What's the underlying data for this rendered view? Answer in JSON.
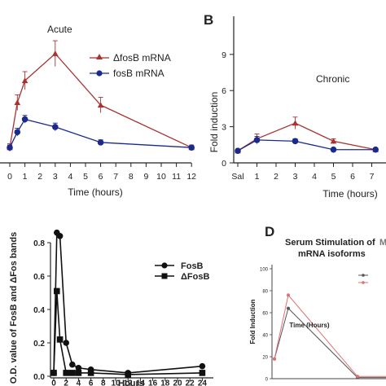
{
  "colors": {
    "red": "#a83232",
    "navy": "#1a2a8c",
    "black": "#111111",
    "pinkred": "#e06f6f",
    "gray": "#555555"
  },
  "panel_A": {
    "title": "Acute",
    "legend": [
      "ΔfosB mRNA",
      "fosB mRNA"
    ]
  },
  "panel_B": {
    "letter": "B",
    "title": "Chronic"
  },
  "panel_C": {
    "legend": [
      "FosB",
      "ΔFosB"
    ]
  },
  "panel_D": {
    "letter": "D",
    "title_line1": "Serum Stimulation of",
    "title_line2": "mRNA isoforms",
    "title_cut": "M"
  },
  "chart_data": [
    {
      "panel": "A",
      "type": "line",
      "title": "Acute",
      "xlabel": "Time (hours)",
      "ylabel": "",
      "x_ticks": [
        "0",
        "1",
        "2",
        "3",
        "4",
        "5",
        "6",
        "7",
        "8",
        "9",
        "10",
        "11",
        "12"
      ],
      "xlim": [
        0,
        12
      ],
      "ylim": [
        0,
        10
      ],
      "series": [
        {
          "name": "ΔfosB mRNA",
          "color": "#a83232",
          "marker": "triangle",
          "x": [
            0,
            0.5,
            1,
            3,
            6,
            12
          ],
          "y": [
            1,
            4.5,
            6.2,
            8.3,
            4.3,
            1
          ],
          "err": [
            0.3,
            0.6,
            0.7,
            1.0,
            0.6,
            0.2
          ]
        },
        {
          "name": "fosB mRNA",
          "color": "#1a2a8c",
          "marker": "circle",
          "x": [
            0,
            0.5,
            1,
            3,
            6,
            12
          ],
          "y": [
            1,
            2.2,
            3.2,
            2.6,
            1.4,
            1
          ],
          "err": [
            0.2,
            0.3,
            0.3,
            0.3,
            0.2,
            0.1
          ]
        }
      ]
    },
    {
      "panel": "B",
      "type": "line",
      "title": "Chronic",
      "xlabel": "Time (hours)",
      "ylabel": "Fold induction",
      "x_ticks": [
        "Sal",
        "1",
        "2",
        "3",
        "4",
        "5",
        "6",
        "7"
      ],
      "y_ticks": [
        "0",
        "3",
        "6",
        "9"
      ],
      "xlim": [
        0,
        7
      ],
      "ylim": [
        0,
        12
      ],
      "series": [
        {
          "color": "#a83232",
          "marker": "triangle",
          "x": [
            0,
            1,
            3,
            5,
            7.2
          ],
          "y": [
            1,
            2,
            3.3,
            1.8,
            1.1
          ],
          "err": [
            0.1,
            0.4,
            0.5,
            0.2,
            0.1
          ]
        },
        {
          "color": "#1a2a8c",
          "marker": "circle",
          "x": [
            0,
            1,
            3,
            5,
            7.2
          ],
          "y": [
            1,
            1.9,
            1.8,
            1.1,
            1.1
          ],
          "err": [
            0.1,
            0.3,
            0.2,
            0.1,
            0.1
          ]
        }
      ]
    },
    {
      "panel": "C",
      "type": "line",
      "xlabel": "Hours",
      "ylabel": "O.D. value of FosB and ΔFos bands",
      "x_ticks": [
        "0",
        "2",
        "4",
        "6",
        "8",
        "10",
        "12",
        "14",
        "16",
        "18",
        "20",
        "22",
        "24"
      ],
      "y_ticks": [
        "0.0",
        "0.2",
        "0.4",
        "0.6",
        "0.8"
      ],
      "xlim": [
        0,
        24
      ],
      "ylim": [
        0,
        0.9
      ],
      "series": [
        {
          "name": "FosB",
          "color": "#111111",
          "marker": "circle",
          "x": [
            0,
            0.5,
            1,
            2,
            3,
            4,
            6,
            12,
            24
          ],
          "y": [
            0.02,
            0.86,
            0.84,
            0.2,
            0.07,
            0.05,
            0.04,
            0.02,
            0.06
          ]
        },
        {
          "name": "ΔFosB",
          "color": "#111111",
          "marker": "square",
          "x": [
            0,
            0.5,
            1,
            2,
            3,
            4,
            6,
            12,
            24
          ],
          "y": [
            0.02,
            0.51,
            0.22,
            0.02,
            0.02,
            0.02,
            0.02,
            0.01,
            0.02
          ]
        }
      ]
    },
    {
      "panel": "D",
      "type": "line",
      "title": "Serum Stimulation of M mRNA isoforms",
      "xlabel": "Time (Hours)",
      "ylabel": "Fold Induction",
      "y_ticks": [
        "0",
        "20",
        "40",
        "60",
        "80",
        "100"
      ],
      "ylim": [
        0,
        100
      ],
      "xlim": [
        0,
        24
      ],
      "series": [
        {
          "color": "#555555",
          "marker": "circle",
          "x": [
            0,
            2,
            12,
            24
          ],
          "y": [
            18,
            64,
            1,
            1
          ]
        },
        {
          "color": "#e06f6f",
          "marker": "circle",
          "x": [
            0,
            2,
            12,
            24
          ],
          "y": [
            18,
            76,
            2,
            2
          ]
        }
      ]
    }
  ]
}
